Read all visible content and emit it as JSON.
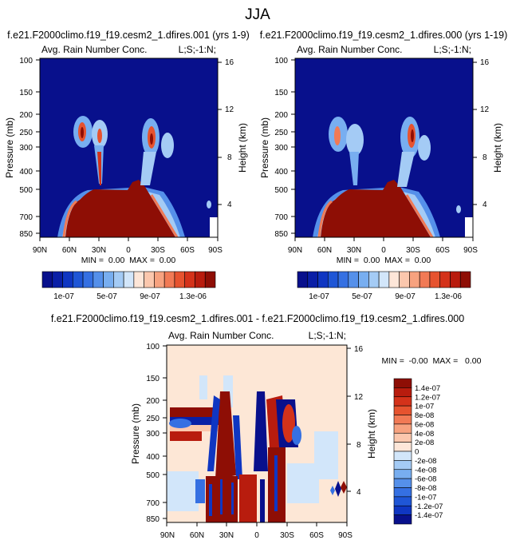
{
  "page_title": "JJA",
  "colors": {
    "blue_scale": [
      "#08108c",
      "#0a1fa6",
      "#0f36c2",
      "#1f56d6",
      "#3570e2",
      "#5590ea",
      "#78aef0",
      "#a4cbf5",
      "#d2e6fa"
    ],
    "red_scale": [
      "#fde6d8",
      "#fbc7ad",
      "#f7a27f",
      "#f17a55",
      "#e6532f",
      "#d4321a",
      "#b81c0e",
      "#8e0e05"
    ],
    "diff_background": "#fde7d6"
  },
  "chart_data": [
    {
      "type": "heatmap",
      "id": "top-left",
      "run_title": "f.e21.F2000climo.f19_f19.cesm2_1.dfires.001 (yrs 1-9)",
      "left_title": "Avg. Rain Number Conc.",
      "right_title": "L;S;-1:N;",
      "ylabel": "Pressure (mb)",
      "ylabel_right": "Height (km)",
      "x_ticks": [
        "90N",
        "60N",
        "30N",
        "0",
        "30S",
        "60S",
        "90S"
      ],
      "y_ticks": [
        "100",
        "150",
        "200",
        "250",
        "300",
        "400",
        "500",
        "700",
        "850"
      ],
      "y_right_ticks": [
        "16",
        "12",
        "8",
        "4"
      ],
      "stats": "MIN =  0.00  MAX =  0.00",
      "colorbar_labels": [
        "1e-07",
        "5e-07",
        "9e-07",
        "1.3e-06"
      ],
      "xlim": [
        90,
        -90
      ],
      "ylim": [
        100,
        1000
      ]
    },
    {
      "type": "heatmap",
      "id": "top-right",
      "run_title": "f.e21.F2000climo.f19_f19.cesm2_1.dfires.000 (yrs 1-19)",
      "left_title": "Avg. Rain Number Conc.",
      "right_title": "L;S;-1:N;",
      "ylabel": "Pressure (mb)",
      "ylabel_right": "Height (km)",
      "x_ticks": [
        "90N",
        "60N",
        "30N",
        "0",
        "30S",
        "60S",
        "90S"
      ],
      "y_ticks": [
        "100",
        "150",
        "200",
        "250",
        "300",
        "400",
        "500",
        "700",
        "850"
      ],
      "y_right_ticks": [
        "16",
        "12",
        "8",
        "4"
      ],
      "stats": "MIN =  0.00  MAX =  0.00",
      "colorbar_labels": [
        "1e-07",
        "5e-07",
        "9e-07",
        "1.3e-06"
      ],
      "xlim": [
        90,
        -90
      ],
      "ylim": [
        100,
        1000
      ]
    },
    {
      "type": "heatmap",
      "id": "difference",
      "run_title": "f.e21.F2000climo.f19_f19.cesm2_1.dfires.001 - f.e21.F2000climo.f19_f19.cesm2_1.dfires.000",
      "left_title": "Avg. Rain Number Conc.",
      "right_title": "L;S;-1:N;",
      "ylabel": "Pressure (mb)",
      "ylabel_right": "Height (km)",
      "x_ticks": [
        "90N",
        "60N",
        "30N",
        "0",
        "30S",
        "60S",
        "90S"
      ],
      "y_ticks": [
        "100",
        "150",
        "200",
        "250",
        "300",
        "400",
        "500",
        "700",
        "850"
      ],
      "y_right_ticks": [
        "16",
        "12",
        "8",
        "4"
      ],
      "stats": "MIN =  -0.00  MAX =   0.00",
      "colorbar_labels": [
        "1.4e-07",
        "1.2e-07",
        "1e-07",
        "8e-08",
        "6e-08",
        "4e-08",
        "2e-08",
        "0",
        "-2e-08",
        "-4e-08",
        "-6e-08",
        "-8e-08",
        "-1e-07",
        "-1.2e-07",
        "-1.4e-07"
      ],
      "xlim": [
        90,
        -90
      ],
      "ylim": [
        100,
        1000
      ]
    }
  ]
}
